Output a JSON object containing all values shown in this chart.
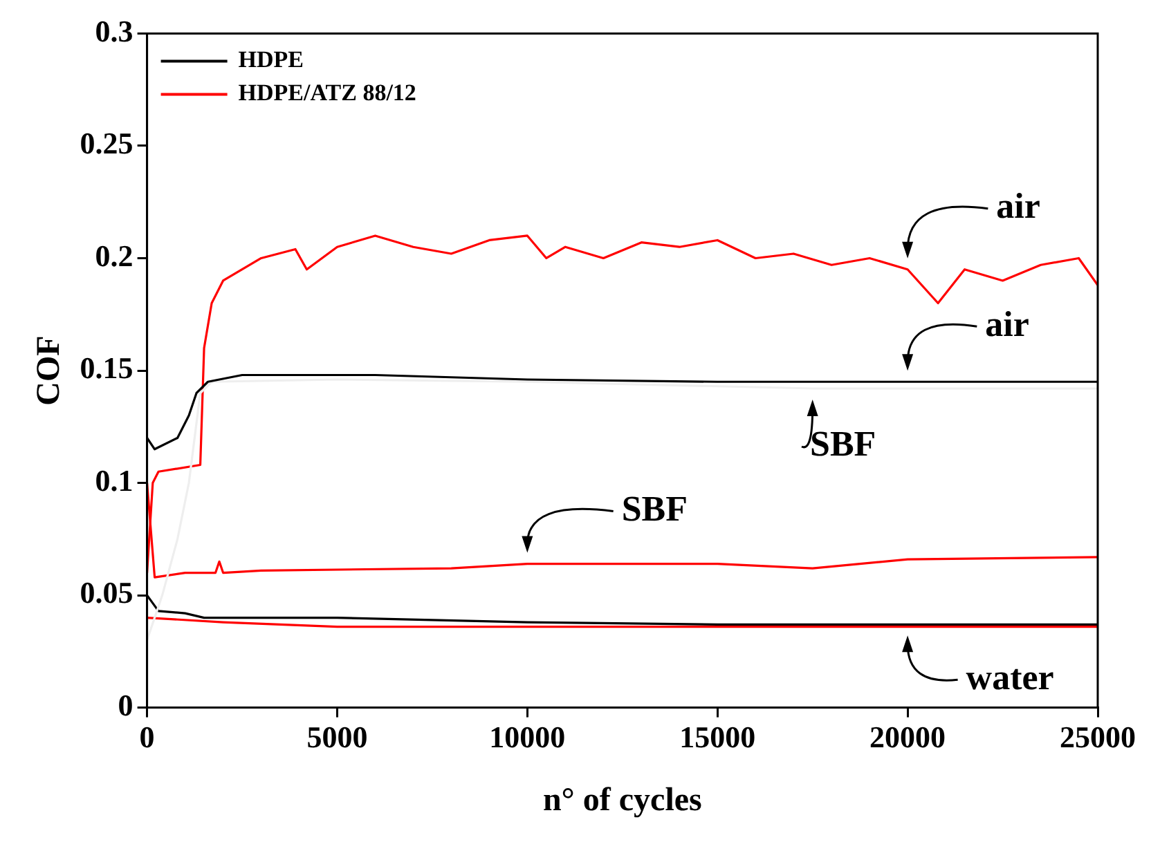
{
  "chart_data": {
    "type": "line",
    "xlabel": "n° of cycles",
    "ylabel": "COF",
    "xlim": [
      0,
      25000
    ],
    "xticks": [
      0,
      5000,
      10000,
      15000,
      20000,
      25000
    ],
    "ylim": [
      0,
      0.3
    ],
    "yticks": [
      0,
      0.05,
      0.1,
      0.15,
      0.2,
      0.25,
      0.3
    ],
    "grid": false,
    "legend": "top left",
    "marker": "none",
    "line_style": "solid",
    "series": [
      {
        "name": "HDPE",
        "color": "#000000",
        "x": [
          0,
          200,
          800,
          1100,
          1300,
          1600,
          2500,
          6000,
          10000,
          15000,
          20000,
          25000
        ],
        "values": [
          0.12,
          0.115,
          0.12,
          0.13,
          0.14,
          0.145,
          0.148,
          0.148,
          0.146,
          0.145,
          0.145,
          0.145
        ]
      },
      {
        "color": "#eeeeee",
        "x": [
          0,
          400,
          800,
          1100,
          1400,
          1700,
          5000,
          10000,
          15000,
          17500,
          20000,
          25000
        ],
        "values": [
          0.03,
          0.05,
          0.075,
          0.1,
          0.14,
          0.145,
          0.146,
          0.145,
          0.143,
          0.142,
          0.142,
          0.142
        ]
      },
      {
        "color": "#000000",
        "x": [
          0,
          300,
          1000,
          1500,
          5000,
          10000,
          15000,
          20000,
          25000
        ],
        "values": [
          0.05,
          0.043,
          0.042,
          0.04,
          0.04,
          0.038,
          0.037,
          0.037,
          0.037
        ]
      },
      {
        "name": "HDPE/ATZ 88/12",
        "color": "#ff0000",
        "x": [
          0,
          150,
          300,
          1400,
          1500,
          1700,
          2000,
          3000,
          3900,
          4200,
          5000,
          6000,
          7000,
          8000,
          9000,
          10000,
          10500,
          11000,
          12000,
          13000,
          14000,
          15000,
          16000,
          17000,
          18000,
          19000,
          20000,
          20800,
          21500,
          22500,
          23500,
          24500,
          25000
        ],
        "values": [
          0.06,
          0.1,
          0.105,
          0.108,
          0.16,
          0.18,
          0.19,
          0.2,
          0.204,
          0.195,
          0.205,
          0.21,
          0.205,
          0.202,
          0.208,
          0.21,
          0.2,
          0.205,
          0.2,
          0.207,
          0.205,
          0.208,
          0.2,
          0.202,
          0.197,
          0.2,
          0.195,
          0.18,
          0.195,
          0.19,
          0.197,
          0.2,
          0.188
        ]
      },
      {
        "color": "#ff0000",
        "x": [
          0,
          200,
          1000,
          1800,
          1900,
          2000,
          3000,
          8000,
          10000,
          15000,
          17500,
          20000,
          25000
        ],
        "values": [
          0.1,
          0.058,
          0.06,
          0.06,
          0.065,
          0.06,
          0.061,
          0.062,
          0.064,
          0.064,
          0.062,
          0.066,
          0.067
        ]
      },
      {
        "color": "#ff0000",
        "x": [
          0,
          2000,
          5000,
          10000,
          15000,
          20000,
          25000
        ],
        "values": [
          0.04,
          0.038,
          0.036,
          0.036,
          0.036,
          0.036,
          0.036
        ]
      }
    ],
    "annotations": [
      {
        "text": "air",
        "x": 20000,
        "y": 0.195
      },
      {
        "text": "air",
        "x": 20000,
        "y": 0.145
      },
      {
        "text": "SBF",
        "x": 17500,
        "y": 0.142
      },
      {
        "text": "SBF",
        "x": 10000,
        "y": 0.064
      },
      {
        "text": "water",
        "x": 20000,
        "y": 0.037
      }
    ]
  }
}
